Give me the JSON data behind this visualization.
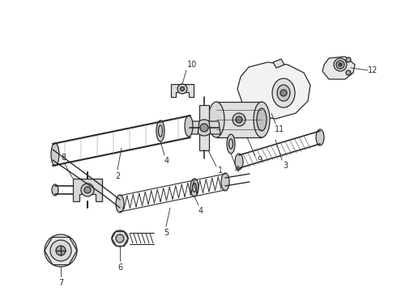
{
  "bg_color": "#ffffff",
  "line_color": "#2a2a2a",
  "lw": 0.9,
  "fig_width": 4.9,
  "fig_height": 3.6,
  "dpi": 100
}
